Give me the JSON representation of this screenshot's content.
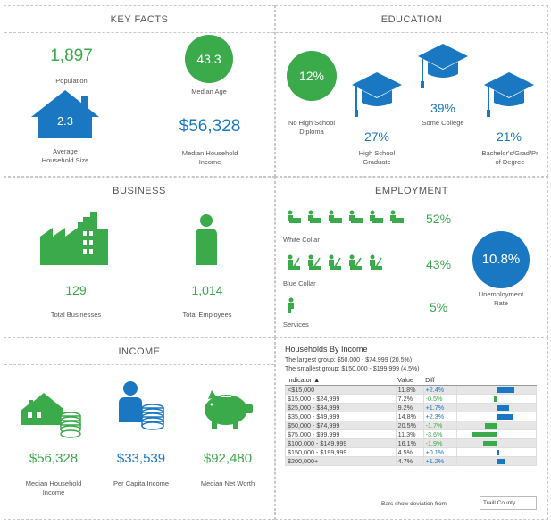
{
  "colors": {
    "green": "#3aaa4a",
    "blue": "#1a78c2"
  },
  "key_facts": {
    "title": "KEY FACTS",
    "population_value": "1,897",
    "population_label": "Population",
    "median_age_value": "43.3",
    "median_age_label": "Median Age",
    "household_size_value": "2.3",
    "household_size_label_1": "Average",
    "household_size_label_2": "Household Size",
    "median_income_value": "$56,328",
    "median_income_label_1": "Median Household",
    "median_income_label_2": "Income"
  },
  "education": {
    "title": "EDUCATION",
    "no_hs_value": "12%",
    "no_hs_label_1": "No High School",
    "no_hs_label_2": "Diploma",
    "hs_value": "27%",
    "hs_label_1": "High School",
    "hs_label_2": "Graduate",
    "college_value": "39%",
    "college_label": "Some College",
    "bachelor_value": "21%",
    "bachelor_label_1": "Bachelor's/Grad/Pr",
    "bachelor_label_2": "of Degree"
  },
  "business": {
    "title": "BUSINESS",
    "businesses_value": "129",
    "businesses_label": "Total Businesses",
    "employees_value": "1,014",
    "employees_label": "Total Employees"
  },
  "employment": {
    "title": "EMPLOYMENT",
    "white_collar_pct": "52%",
    "white_collar_label": "White Collar",
    "blue_collar_pct": "43%",
    "blue_collar_label": "Blue Collar",
    "services_pct": "5%",
    "services_label": "Services",
    "unemployment_value": "10.8%",
    "unemployment_label_1": "Unemployment",
    "unemployment_label_2": "Rate"
  },
  "income": {
    "title": "INCOME",
    "median_household_value": "$56,328",
    "median_household_label_1": "Median Household",
    "median_household_label_2": "Income",
    "per_capita_value": "$33,539",
    "per_capita_label": "Per Capita Income",
    "net_worth_value": "$92,480",
    "net_worth_label": "Median Net Worth"
  },
  "households_by_income": {
    "title": "Households By Income",
    "largest_group": "The largest group: $50,000 - $74,999 (20.5%)",
    "smallest_group": "The smallest group: $150,000 - $199,999 (4.5%)",
    "col_indicator": "Indicator ▲",
    "col_value": "Value",
    "col_diff": "Diff",
    "rows": [
      {
        "indicator": "<$15,000",
        "value": "11.8%",
        "diff": "+2.4%",
        "diff_num": 2.4
      },
      {
        "indicator": "$15,000 - $24,999",
        "value": "7.2%",
        "diff": "-0.5%",
        "diff_num": -0.5
      },
      {
        "indicator": "$25,000 - $34,999",
        "value": "9.2%",
        "diff": "+1.7%",
        "diff_num": 1.7
      },
      {
        "indicator": "$35,000 - $49,999",
        "value": "14.8%",
        "diff": "+2.3%",
        "diff_num": 2.3
      },
      {
        "indicator": "$50,000 - $74,999",
        "value": "20.5%",
        "diff": "-1.7%",
        "diff_num": -1.7
      },
      {
        "indicator": "$75,000 - $99,999",
        "value": "11.3%",
        "diff": "-3.6%",
        "diff_num": -3.6
      },
      {
        "indicator": "$100,000 - $149,999",
        "value": "16.1%",
        "diff": "-1.9%",
        "diff_num": -1.9
      },
      {
        "indicator": "$150,000 - $199,999",
        "value": "4.5%",
        "diff": "+0.1%",
        "diff_num": 0.1
      },
      {
        "indicator": "$200,000+",
        "value": "4.7%",
        "diff": "+1.2%",
        "diff_num": 1.2
      }
    ],
    "deviation_label": "Bars show deviation from",
    "deviation_area": "Traill County"
  }
}
